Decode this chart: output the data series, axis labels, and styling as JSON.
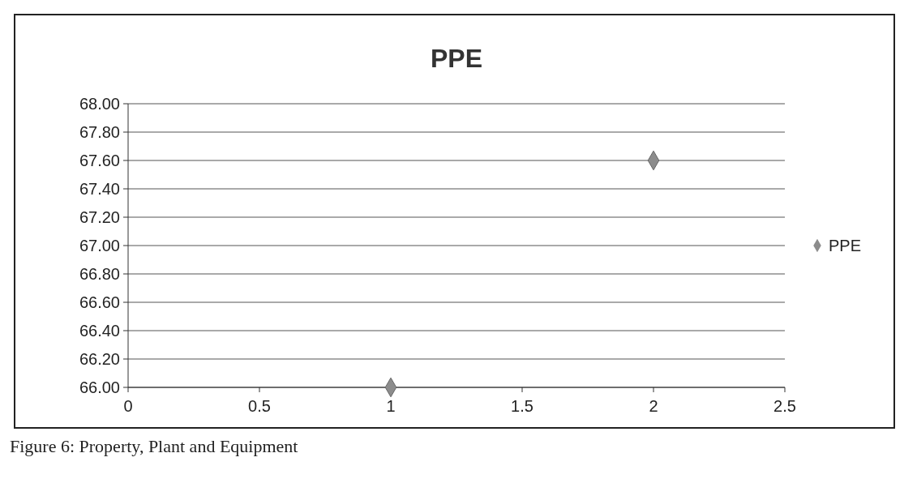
{
  "chart_data": {
    "type": "scatter",
    "title": "PPE",
    "series": [
      {
        "name": "PPE",
        "color": "#8c8c8c",
        "x": [
          1,
          2
        ],
        "values": [
          66.0,
          67.6
        ]
      }
    ],
    "xlim": [
      0,
      2.5
    ],
    "xticks": [
      0,
      0.5,
      1,
      1.5,
      2,
      2.5
    ],
    "ylim": [
      66,
      68
    ],
    "yticks": [
      {
        "value": 66,
        "label": "66.00"
      },
      {
        "value": 66.2,
        "label": "66.20"
      },
      {
        "value": 66.4,
        "label": "66.40"
      },
      {
        "value": 66.6,
        "label": "66.60"
      },
      {
        "value": 66.8,
        "label": "66.80"
      },
      {
        "value": 67,
        "label": "67.00"
      },
      {
        "value": 67.2,
        "label": "67.20"
      },
      {
        "value": 67.4,
        "label": "67.40"
      },
      {
        "value": 67.6,
        "label": "67.60"
      },
      {
        "value": 67.8,
        "label": "67.80"
      },
      {
        "value": 68,
        "label": "68.00"
      }
    ],
    "grid": "y",
    "legend": "right",
    "marker": "diamond",
    "annotations": [
      "Figure 6: Property, Plant and Equipment"
    ]
  }
}
